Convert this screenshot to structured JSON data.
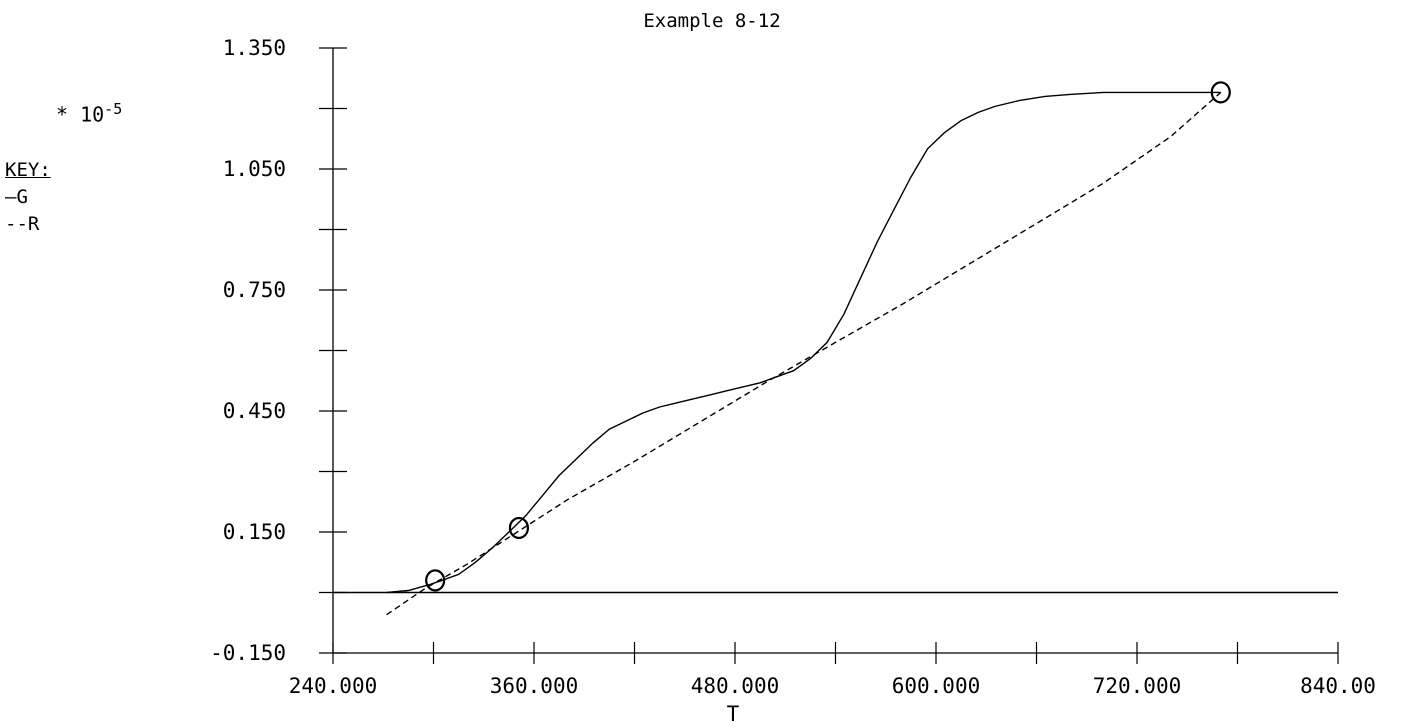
{
  "chart_data": {
    "type": "line",
    "title": "Example 8-12",
    "xlabel": "T",
    "ylabel": "",
    "y_multiplier": {
      "symbol": "*",
      "base": "10",
      "exponent": "-5"
    },
    "xlim": [
      240,
      840
    ],
    "ylim": [
      -0.15,
      1.35
    ],
    "x_ticks": [
      "240.000",
      "360.000",
      "480.000",
      "600.000",
      "720.000",
      "840.00"
    ],
    "y_ticks": [
      "1.350",
      "1.050",
      "0.750",
      "0.450",
      "0.150",
      "-0.150"
    ],
    "legend": {
      "title": "KEY:",
      "entries": [
        "—G",
        "--R"
      ],
      "placement": "left"
    },
    "series": [
      {
        "name": "G",
        "style": "solid",
        "x": [
          272,
          285,
          298,
          305,
          315,
          325,
          335,
          345,
          350,
          355,
          365,
          375,
          385,
          395,
          405,
          415,
          425,
          435,
          445,
          455,
          465,
          475,
          485,
          495,
          505,
          515,
          525,
          535,
          545,
          555,
          565,
          575,
          585,
          595,
          605,
          615,
          625,
          635,
          650,
          665,
          680,
          700,
          720,
          740,
          770
        ],
        "y": [
          0.0,
          0.005,
          0.02,
          0.03,
          0.045,
          0.075,
          0.11,
          0.15,
          0.17,
          0.19,
          0.24,
          0.29,
          0.33,
          0.37,
          0.405,
          0.425,
          0.445,
          0.46,
          0.47,
          0.48,
          0.49,
          0.5,
          0.51,
          0.52,
          0.535,
          0.55,
          0.58,
          0.62,
          0.69,
          0.78,
          0.87,
          0.95,
          1.03,
          1.1,
          1.14,
          1.17,
          1.19,
          1.205,
          1.22,
          1.23,
          1.235,
          1.24,
          1.24,
          1.24,
          1.24
        ]
      },
      {
        "name": "R",
        "style": "dashed",
        "x": [
          272,
          295,
          320,
          350,
          380,
          420,
          460,
          500,
          540,
          580,
          620,
          660,
          700,
          740,
          770
        ],
        "y": [
          -0.055,
          0.01,
          0.07,
          0.15,
          0.23,
          0.325,
          0.425,
          0.525,
          0.62,
          0.715,
          0.815,
          0.915,
          1.015,
          1.13,
          1.24
        ]
      },
      {
        "name": "zero-line",
        "style": "solid",
        "x": [
          240,
          840
        ],
        "y": [
          0.0,
          0.0
        ]
      }
    ],
    "markers": {
      "shape": "circle",
      "x": [
        301,
        351,
        770
      ],
      "y": [
        0.03,
        0.16,
        1.24
      ]
    }
  }
}
